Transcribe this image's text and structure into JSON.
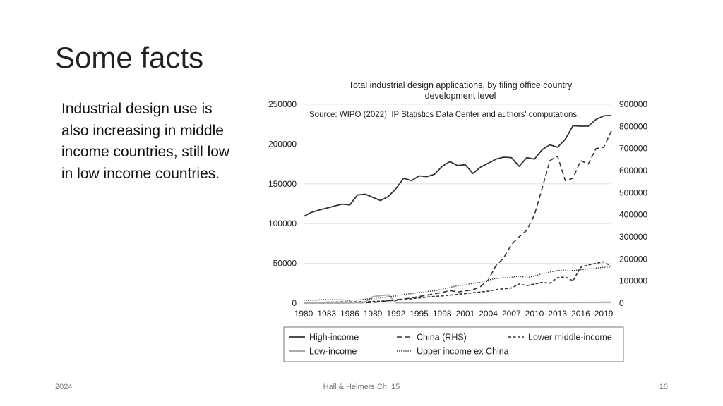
{
  "slide": {
    "title": "Some facts",
    "body": "Industrial design use is also increasing in middle income countries, still low in low income countries.",
    "footer_left": "2024",
    "footer_center": "Hall & Helmers Ch. 15",
    "footer_right": "10"
  },
  "chart_data": {
    "type": "line",
    "title_line1": "Total industrial design applications, by filing office country",
    "title_line2": "development level",
    "source": "Source: WIPO (2022). IP Statistics Data Center and authors' computations.",
    "x": [
      1980,
      1981,
      1982,
      1983,
      1984,
      1985,
      1986,
      1987,
      1988,
      1989,
      1990,
      1991,
      1992,
      1993,
      1994,
      1995,
      1996,
      1997,
      1998,
      1999,
      2000,
      2001,
      2002,
      2003,
      2004,
      2005,
      2006,
      2007,
      2008,
      2009,
      2010,
      2011,
      2012,
      2013,
      2014,
      2015,
      2016,
      2017,
      2018,
      2019,
      2020
    ],
    "x_ticks": [
      1980,
      1983,
      1986,
      1989,
      1992,
      1995,
      1998,
      2001,
      2004,
      2007,
      2010,
      2013,
      2016,
      2019
    ],
    "y_left_ticks": [
      0,
      50000,
      100000,
      150000,
      200000,
      250000
    ],
    "y_right_ticks": [
      0,
      100000,
      200000,
      300000,
      400000,
      500000,
      600000,
      700000,
      800000,
      900000
    ],
    "ylim_left": [
      0,
      250000
    ],
    "ylim_right": [
      0,
      900000
    ],
    "series": [
      {
        "name": "High-income",
        "axis": "left",
        "style": "solid",
        "color": "#333333",
        "values": [
          109000,
          114000,
          117000,
          119500,
          122000,
          124500,
          123500,
          136000,
          137000,
          133000,
          129000,
          134000,
          144000,
          157000,
          154000,
          160000,
          159000,
          162000,
          172000,
          178000,
          173000,
          174000,
          163000,
          171000,
          176000,
          181000,
          183500,
          183000,
          172000,
          183000,
          181000,
          193000,
          199000,
          196000,
          206000,
          223000,
          222500,
          222500,
          231000,
          235500,
          236000
        ]
      },
      {
        "name": "China (RHS)",
        "axis": "right",
        "style": "dashed",
        "color": "#333333",
        "values": [
          0,
          0,
          0,
          0,
          0,
          0,
          1500,
          1700,
          2000,
          3200,
          6000,
          10000,
          15000,
          19000,
          23000,
          30000,
          35000,
          43000,
          48000,
          57000,
          50000,
          55000,
          60000,
          75000,
          105000,
          170000,
          205000,
          265000,
          300000,
          330000,
          400000,
          520000,
          645000,
          665000,
          555000,
          565000,
          645000,
          630000,
          700000,
          705000,
          780000
        ]
      },
      {
        "name": "Lower middle-income",
        "axis": "left",
        "style": "dashdot",
        "color": "#333333",
        "values": [
          1000,
          1000,
          1000,
          1200,
          1300,
          1500,
          1500,
          1700,
          1800,
          2000,
          2500,
          3000,
          3500,
          4500,
          5500,
          6500,
          7500,
          8500,
          9000,
          10000,
          11000,
          12000,
          13000,
          14000,
          15000,
          17000,
          18000,
          19000,
          24000,
          22000,
          24000,
          26000,
          25000,
          32000,
          33000,
          28000,
          45000,
          48000,
          50000,
          52000,
          46000
        ]
      },
      {
        "name": "Low-income",
        "axis": "left",
        "style": "solid",
        "color": "#aaaaaa",
        "values": [
          200,
          200,
          200,
          200,
          300,
          300,
          300,
          400,
          1500,
          8000,
          9500,
          10500,
          500,
          400,
          400,
          400,
          400,
          400,
          400,
          400,
          400,
          400,
          400,
          400,
          400,
          500,
          500,
          500,
          500,
          500,
          500,
          600,
          700,
          700,
          800,
          900,
          900,
          1000,
          1000,
          1100,
          1200
        ]
      },
      {
        "name": "Upper income ex China",
        "axis": "left",
        "style": "dotted",
        "color": "#333333",
        "values": [
          3000,
          3500,
          4000,
          4500,
          4500,
          4000,
          3500,
          4000,
          5000,
          5500,
          6500,
          8000,
          9000,
          11000,
          12000,
          13500,
          14500,
          15500,
          17500,
          19500,
          22000,
          23000,
          25000,
          26000,
          29000,
          31000,
          32000,
          32500,
          34000,
          32000,
          34000,
          37000,
          39000,
          41000,
          41500,
          41000,
          42000,
          43000,
          44000,
          45000,
          45500
        ]
      }
    ]
  }
}
